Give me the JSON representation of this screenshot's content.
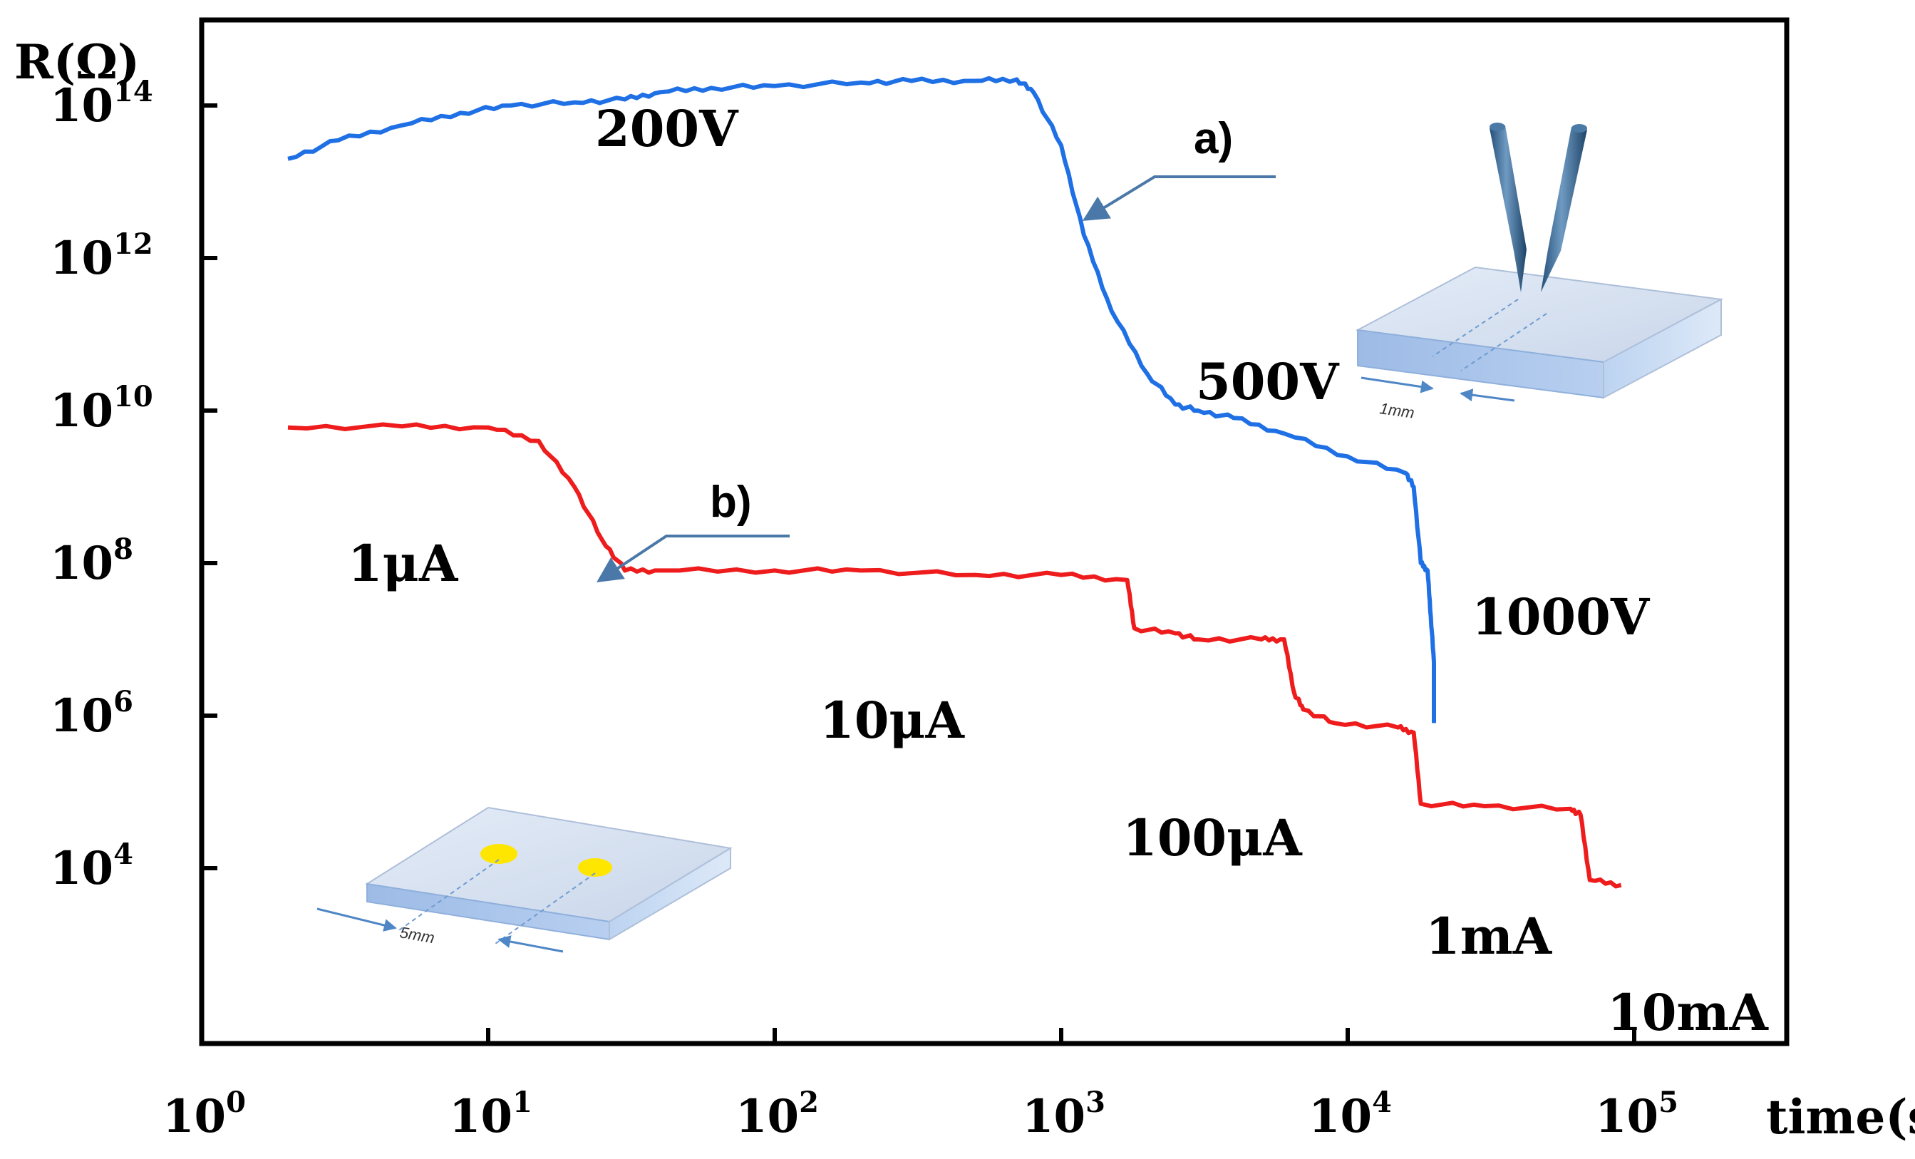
{
  "chart_data": {
    "type": "line",
    "ylabel": "R(Ω)",
    "xlabel": "time(s)",
    "xscale": "log",
    "yscale": "log",
    "xlim": [
      1,
      100000
    ],
    "ylim": [
      5000,
      1000000000000000
    ],
    "x_ticks": [
      {
        "value": 1,
        "base": "10",
        "exp": "0"
      },
      {
        "value": 10,
        "base": "10",
        "exp": "1"
      },
      {
        "value": 100,
        "base": "10",
        "exp": "2"
      },
      {
        "value": 1000,
        "base": "10",
        "exp": "3"
      },
      {
        "value": 10000,
        "base": "10",
        "exp": "4"
      },
      {
        "value": 100000,
        "base": "10",
        "exp": "5"
      }
    ],
    "y_ticks": [
      {
        "value": 10000,
        "base": "10",
        "exp": "4"
      },
      {
        "value": 1000000,
        "base": "10",
        "exp": "6"
      },
      {
        "value": 100000000,
        "base": "10",
        "exp": "8"
      },
      {
        "value": 10000000000,
        "base": "10",
        "exp": "10"
      },
      {
        "value": 1000000000000,
        "base": "10",
        "exp": "12"
      },
      {
        "value": 100000000000000,
        "base": "10",
        "exp": "14"
      }
    ],
    "grid": false,
    "series": [
      {
        "name": "a)",
        "color": "#1f6fe5",
        "x": [
          2,
          3,
          5,
          8,
          12,
          20,
          30,
          40,
          60,
          100,
          200,
          300,
          500,
          700,
          800,
          1000,
          1200,
          1500,
          2000,
          2500,
          3000,
          4000,
          6000,
          10000,
          16000,
          17000,
          18000,
          19000,
          19500,
          20000,
          20000
        ],
        "y": [
          20000000000000.0,
          35000000000000.0,
          55000000000000.0,
          80000000000000.0,
          100000000000000.0,
          110000000000000.0,
          120000000000000.0,
          150000000000000.0,
          170000000000000.0,
          180000000000000.0,
          200000000000000.0,
          210000000000000.0,
          210000000000000.0,
          220000000000000.0,
          150000000000000.0,
          30000000000000.0,
          2000000000000.0,
          200000000000.0,
          30000000000.0,
          12000000000.0,
          10000000000.0,
          8000000000.0,
          5000000000.0,
          2500000000.0,
          1500000000.0,
          1000000000.0,
          100000000.0,
          80000000.0,
          20000000.0,
          5000000.0,
          800000.0
        ]
      },
      {
        "name": "b)",
        "color": "#ee1c1c",
        "x": [
          2,
          5,
          10,
          15,
          20,
          25,
          30,
          40,
          100,
          200,
          500,
          1000,
          1700,
          1800,
          2500,
          3000,
          5000,
          6000,
          6500,
          7000,
          9000,
          15000,
          17000,
          18000,
          30000,
          60000,
          65000,
          70000,
          90000
        ],
        "y": [
          6000000000.0,
          6200000000.0,
          6000000000.0,
          4000000000.0,
          1000000000.0,
          200000000.0,
          80000000.0,
          80000000.0,
          80000000.0,
          80000000.0,
          70000000.0,
          70000000.0,
          60000000.0,
          14000000.0,
          12000000.0,
          10000000.0,
          10000000.0,
          10000000.0,
          2000000.0,
          1200000.0,
          800000.0,
          700000.0,
          600000.0,
          70000.0,
          65000.0,
          60000.0,
          50000.0,
          7000.0,
          6000.0
        ]
      }
    ],
    "annotations": {
      "series_a_label": "a)",
      "series_b_label": "b)",
      "a_200v": "200V",
      "a_500v": "500V",
      "a_1000v": "1000V",
      "b_1ua": "1μA",
      "b_10ua": "10μA",
      "b_100ua": "100μA",
      "b_1ma": "1mA",
      "b_10ma": "10mA",
      "inset_a_gap": "1mm",
      "inset_b_gap": "5mm"
    }
  }
}
